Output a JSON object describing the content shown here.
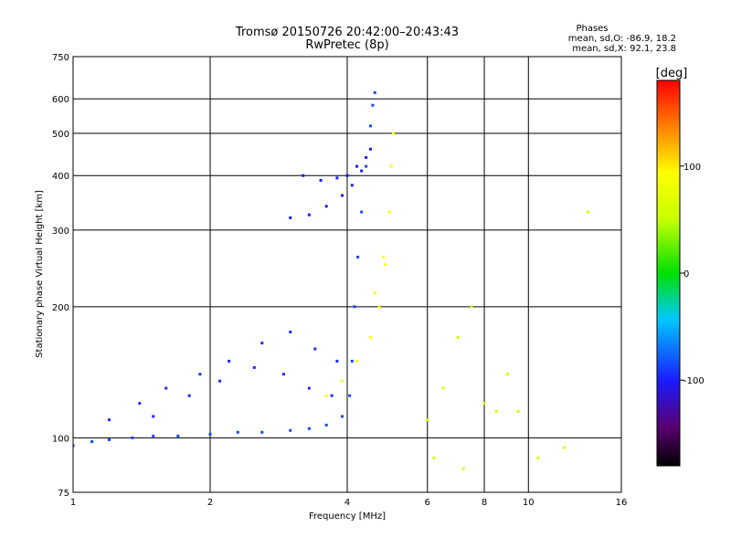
{
  "chart_data": {
    "type": "scatter",
    "title": "Tromsø 20150726 20:42:00–20:43:43",
    "subtitle": "RwPretec (8p)",
    "stats": {
      "heading": "Phases",
      "line1": "mean, sd,O: -86.9, 18.2",
      "line2": "mean, sd,X:  92.1, 23.8"
    },
    "xlabel": "Frequency [MHz]",
    "ylabel": "Stationary phase Virtual Height [km]",
    "x_scale": "log2",
    "y_scale": "log",
    "xlim": [
      1,
      16
    ],
    "ylim": [
      75,
      750
    ],
    "x_ticks": [
      1,
      2,
      4,
      6,
      8,
      10,
      16
    ],
    "y_ticks": [
      75,
      100,
      200,
      300,
      400,
      500,
      600,
      750
    ],
    "grid": true,
    "colorbar": {
      "label": "[deg]",
      "range": [
        -180,
        180
      ],
      "ticks": [
        100,
        0,
        -100
      ]
    },
    "series": [
      {
        "trace_kind": "O-mode F-trace",
        "phase_deg": -85,
        "points": [
          [
            1.0,
            96
          ],
          [
            1.1,
            98
          ],
          [
            1.2,
            99
          ],
          [
            1.35,
            100
          ],
          [
            1.5,
            101
          ],
          [
            1.7,
            101
          ],
          [
            2.0,
            102
          ],
          [
            2.3,
            103
          ],
          [
            2.6,
            103
          ],
          [
            3.0,
            104
          ],
          [
            3.3,
            105
          ],
          [
            3.6,
            107
          ],
          [
            3.9,
            112
          ],
          [
            4.05,
            125
          ],
          [
            4.1,
            150
          ],
          [
            4.15,
            200
          ],
          [
            4.22,
            260
          ],
          [
            4.3,
            330
          ],
          [
            4.4,
            420
          ],
          [
            4.5,
            520
          ],
          [
            4.55,
            580
          ],
          [
            4.6,
            620
          ]
        ]
      },
      {
        "trace_kind": "O-mode low cusp cloud",
        "phase_deg": -95,
        "points": [
          [
            1.2,
            110
          ],
          [
            1.4,
            120
          ],
          [
            1.6,
            130
          ],
          [
            1.9,
            140
          ],
          [
            2.2,
            150
          ],
          [
            2.6,
            165
          ],
          [
            3.0,
            175
          ],
          [
            3.4,
            160
          ],
          [
            3.8,
            150
          ],
          [
            1.5,
            112
          ],
          [
            1.8,
            125
          ],
          [
            2.1,
            135
          ],
          [
            2.5,
            145
          ],
          [
            2.9,
            140
          ],
          [
            3.3,
            130
          ],
          [
            3.7,
            125
          ]
        ]
      },
      {
        "trace_kind": "O-mode upper trace",
        "phase_deg": -100,
        "points": [
          [
            3.0,
            320
          ],
          [
            3.3,
            325
          ],
          [
            3.6,
            340
          ],
          [
            3.9,
            360
          ],
          [
            4.1,
            380
          ],
          [
            4.3,
            410
          ],
          [
            4.5,
            460
          ],
          [
            3.2,
            400
          ],
          [
            3.5,
            390
          ],
          [
            3.8,
            395
          ],
          [
            4.0,
            400
          ],
          [
            4.2,
            420
          ],
          [
            4.4,
            440
          ]
        ]
      },
      {
        "trace_kind": "X-mode trace",
        "phase_deg": 95,
        "points": [
          [
            3.6,
            125
          ],
          [
            3.9,
            135
          ],
          [
            4.2,
            150
          ],
          [
            4.5,
            170
          ],
          [
            4.7,
            200
          ],
          [
            4.85,
            250
          ],
          [
            4.95,
            330
          ],
          [
            5.0,
            420
          ],
          [
            5.05,
            500
          ],
          [
            4.6,
            215
          ],
          [
            4.8,
            260
          ]
        ]
      },
      {
        "trace_kind": "scattered echoes",
        "phase_deg": 60,
        "points": [
          [
            6.0,
            110
          ],
          [
            6.5,
            130
          ],
          [
            7.0,
            170
          ],
          [
            7.5,
            200
          ],
          [
            8.0,
            120
          ],
          [
            8.5,
            115
          ],
          [
            9.0,
            140
          ],
          [
            9.5,
            115
          ],
          [
            6.2,
            90
          ],
          [
            7.2,
            85
          ],
          [
            10.5,
            90
          ],
          [
            12.0,
            95
          ],
          [
            13.5,
            330
          ]
        ]
      }
    ]
  }
}
